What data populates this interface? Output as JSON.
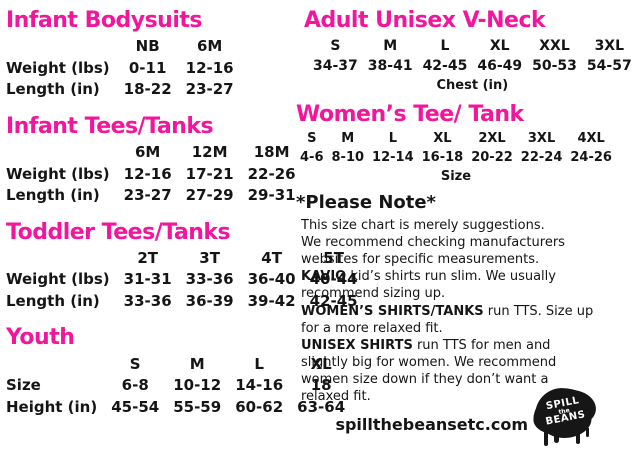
{
  "page": {
    "background": "#ffffff",
    "accent_pink": "#F2169C",
    "text_color": "#151515"
  },
  "sections": {
    "infantBodysuits": {
      "title": "Infant Bodysuits",
      "table": {
        "rowLabels": true,
        "header": [
          "",
          "NB",
          "6M"
        ],
        "rows": [
          [
            "Weight (lbs)",
            "0-11",
            "12-16"
          ],
          [
            "Length (in)",
            "18-22",
            "23-27"
          ]
        ]
      }
    },
    "infantTees": {
      "title": "Infant Tees/Tanks",
      "table": {
        "rowLabels": true,
        "header": [
          "",
          "6M",
          "12M",
          "18M"
        ],
        "rows": [
          [
            "Weight (lbs)",
            "12-16",
            "17-21",
            "22-26"
          ],
          [
            "Length (in)",
            "23-27",
            "27-29",
            "29-31"
          ]
        ]
      }
    },
    "toddlerTees": {
      "title": "Toddler Tees/Tanks",
      "table": {
        "rowLabels": true,
        "header": [
          "",
          "2T",
          "3T",
          "4T",
          "5T"
        ],
        "rows": [
          [
            "Weight (lbs)",
            "31-31",
            "33-36",
            "36-40",
            "40-44"
          ],
          [
            "Length (in)",
            "33-36",
            "36-39",
            "39-42",
            "42-45"
          ]
        ]
      }
    },
    "youth": {
      "title": "Youth",
      "table": {
        "rowLabels": true,
        "header": [
          "",
          "S",
          "M",
          "L",
          "XL"
        ],
        "rows": [
          [
            "Size",
            "6-8",
            "10-12",
            "14-16",
            "18"
          ],
          [
            "Height (in)",
            "45-54",
            "55-59",
            "60-62",
            "63-64"
          ]
        ]
      }
    },
    "adultVNeck": {
      "title": "Adult Unisex V-Neck",
      "table": {
        "header": [
          "S",
          "M",
          "L",
          "XL",
          "XXL",
          "3XL"
        ],
        "rows": [
          [
            "34-37",
            "38-41",
            "42-45",
            "46-49",
            "50-53",
            "54-57"
          ]
        ],
        "caption": "Chest (in)"
      }
    },
    "womensTee": {
      "title": "Women’s Tee/ Tank",
      "table": {
        "header": [
          "S",
          "M",
          "L",
          "XL",
          "2XL",
          "3XL",
          "4XL"
        ],
        "rows": [
          [
            "4-6",
            "8-10",
            "12-14",
            "16-18",
            "20-22",
            "22-24",
            "24-26"
          ]
        ],
        "caption": "Size"
      }
    }
  },
  "notes": {
    "title": "*Please Note*",
    "lines": [
      {
        "b": "",
        "t": "This size chart is merely suggestions."
      },
      {
        "b": "",
        "t": "We recommend checking manufacturers websites for specific measurements."
      },
      {
        "b": "KAVIO",
        "t": " kid’s shirts run slim. We usually recommend sizing up."
      },
      {
        "b": "WOMEN’S SHIRTS/TANKS",
        "t": " run TTS. Size up for a more relaxed fit."
      },
      {
        "b": "UNISEX SHIRTS",
        "t": " run TTS for men and slightly big for women. We recommend women size down if they don’t want a relaxed fit."
      }
    ]
  },
  "footer": {
    "website": "spillthebeansetc.com",
    "logo": {
      "line1": "SPILL",
      "line2": "the",
      "line3": "BEANS"
    }
  }
}
